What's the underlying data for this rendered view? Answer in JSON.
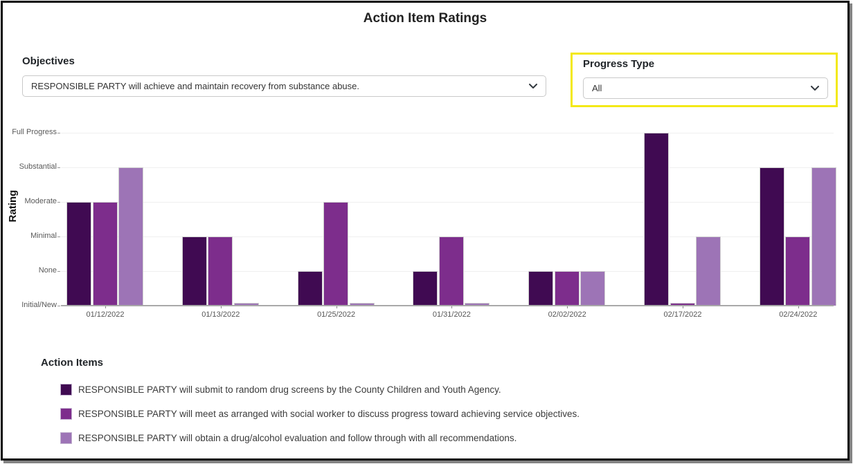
{
  "page": {
    "title": "Action Item Ratings"
  },
  "controls": {
    "objectives": {
      "label": "Objectives",
      "value": "RESPONSIBLE PARTY will achieve and maintain recovery from substance abuse."
    },
    "progress_type": {
      "label": "Progress Type",
      "value": "All",
      "highlight_color": "#f3e916"
    }
  },
  "chart_data": {
    "type": "bar",
    "title": "Action Item Ratings",
    "xlabel": "",
    "ylabel": "Rating",
    "ylim": [
      0,
      5
    ],
    "grid": true,
    "y_tick_labels": [
      "Initial/New",
      "None",
      "Minimal",
      "Moderate",
      "Substantial",
      "Full Progress"
    ],
    "y_tick_values": [
      0,
      1,
      2,
      3,
      4,
      5
    ],
    "categories": [
      "01/12/2022",
      "01/13/2022",
      "01/25/2022",
      "01/31/2022",
      "02/02/2022",
      "02/17/2022",
      "02/24/2022"
    ],
    "series": [
      {
        "name": "RESPONSIBLE PARTY will submit to random drug screens by the County Children and Youth Agency.",
        "color": "#400a52",
        "values": [
          3,
          2,
          1,
          1,
          1,
          5,
          4
        ],
        "ratings": [
          "Moderate",
          "Minimal",
          "None",
          "None",
          "None",
          "Full Progress",
          "Substantial"
        ]
      },
      {
        "name": "RESPONSIBLE PARTY will meet as arranged with social worker to discuss progress toward achieving service objectives.",
        "color": "#7d2d8c",
        "values": [
          3,
          2,
          3,
          2,
          1,
          0.08,
          2
        ],
        "ratings": [
          "Moderate",
          "Minimal",
          "Moderate",
          "Minimal",
          "None",
          "Initial/New",
          "Minimal"
        ]
      },
      {
        "name": "RESPONSIBLE PARTY will obtain a drug/alcohol evaluation and follow through with all recommendations.",
        "color": "#9d74b6",
        "values": [
          4,
          0.08,
          0.08,
          0.08,
          1,
          2,
          4
        ],
        "ratings": [
          "Substantial",
          "Initial/New",
          "Initial/New",
          "Initial/New",
          "None",
          "Minimal",
          "Substantial"
        ]
      }
    ],
    "legend": {
      "title": "Action Items",
      "position": "bottom"
    }
  }
}
